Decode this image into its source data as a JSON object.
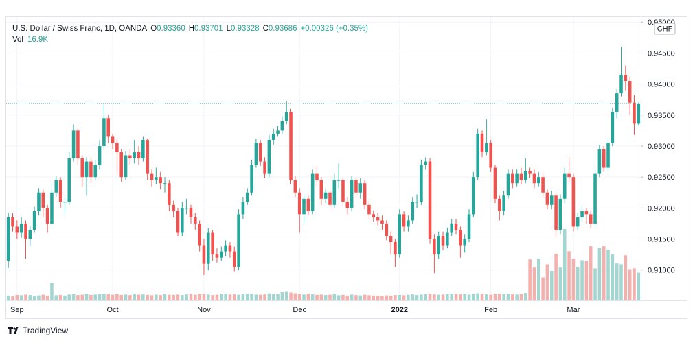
{
  "chart_data": {
    "type": "candlestick",
    "legend": {
      "symbol": "U.S. Dollar / Swiss Franc, 1D, OANDA",
      "fields": [
        {
          "label": "O",
          "value": "0.93360"
        },
        {
          "label": "H",
          "value": "0.93701"
        },
        {
          "label": "L",
          "value": "0.93328"
        },
        {
          "label": "C",
          "value": "0.93686"
        }
      ],
      "change": "+0.00326 (+0.35%)",
      "volume": {
        "label": "Vol",
        "value": "16.9K"
      }
    },
    "currency": "CHF",
    "brand": "TradingView",
    "up_color": "#26a69a",
    "down_color": "#ef5350",
    "volume_up_color": "#a3d6d1",
    "volume_down_color": "#f4b0ad",
    "categories": [
      null,
      null,
      "Sep",
      null,
      null,
      null,
      null,
      null,
      null,
      null,
      null,
      null,
      null,
      null,
      null,
      null,
      null,
      null,
      null,
      null,
      null,
      null,
      null,
      null,
      "Oct",
      null,
      null,
      null,
      null,
      null,
      null,
      null,
      null,
      null,
      null,
      null,
      null,
      null,
      null,
      null,
      null,
      null,
      null,
      null,
      null,
      "Nov",
      null,
      null,
      null,
      null,
      null,
      null,
      null,
      null,
      null,
      null,
      null,
      null,
      null,
      null,
      null,
      null,
      null,
      null,
      null,
      null,
      null,
      "Dec",
      null,
      null,
      null,
      null,
      null,
      null,
      null,
      null,
      null,
      null,
      null,
      null,
      null,
      null,
      null,
      null,
      null,
      null,
      null,
      null,
      null,
      null,
      "2022",
      null,
      null,
      null,
      null,
      null,
      null,
      null,
      null,
      null,
      null,
      null,
      null,
      null,
      null,
      null,
      null,
      null,
      null,
      null,
      null,
      "Feb",
      null,
      null,
      null,
      null,
      null,
      null,
      null,
      null,
      null,
      null,
      null,
      null,
      null,
      null,
      null,
      null,
      null,
      null,
      "Mar",
      null,
      null,
      null,
      null,
      null,
      null,
      null,
      null,
      null,
      null,
      null,
      null,
      null,
      null,
      null
    ],
    "open": [
      0.9115,
      0.9185,
      0.917,
      0.916,
      0.9175,
      0.915,
      0.9165,
      0.9195,
      0.9225,
      0.92,
      0.9175,
      0.9225,
      0.9245,
      0.921,
      0.921,
      0.928,
      0.9325,
      0.928,
      0.925,
      0.9275,
      0.925,
      0.927,
      0.93,
      0.9345,
      0.9315,
      0.9305,
      0.929,
      0.925,
      0.9285,
      0.928,
      0.929,
      0.928,
      0.931,
      0.9255,
      0.9245,
      0.925,
      0.924,
      0.924,
      0.9205,
      0.9195,
      0.916,
      0.92,
      0.92,
      0.9185,
      0.9175,
      0.914,
      0.911,
      0.916,
      0.9125,
      0.912,
      0.913,
      0.914,
      0.913,
      0.9105,
      0.919,
      0.921,
      0.9225,
      0.927,
      0.9305,
      0.9275,
      0.9255,
      0.931,
      0.932,
      0.9325,
      0.934,
      0.9355,
      0.9245,
      0.9225,
      0.919,
      0.9215,
      0.9195,
      0.9255,
      0.9245,
      0.9215,
      0.9225,
      0.9205,
      0.9245,
      0.9245,
      0.921,
      0.92,
      0.9245,
      0.9225,
      0.924,
      0.9205,
      0.919,
      0.9185,
      0.918,
      0.9175,
      0.9155,
      0.9145,
      0.9125,
      0.919,
      0.917,
      0.918,
      0.921,
      0.921,
      0.927,
      0.9275,
      0.915,
      0.9125,
      0.9155,
      0.914,
      0.916,
      0.9175,
      0.9165,
      0.914,
      0.915,
      0.919,
      0.925,
      0.932,
      0.929,
      0.9305,
      0.9265,
      0.9215,
      0.9195,
      0.922,
      0.9255,
      0.924,
      0.9255,
      0.9245,
      0.926,
      0.9255,
      0.924,
      0.925,
      0.9225,
      0.9205,
      0.922,
      0.9165,
      0.9215,
      0.9255,
      0.925,
      0.917,
      0.9185,
      0.9195,
      0.919,
      0.9175,
      0.9255,
      0.9295,
      0.9265,
      0.9305,
      0.9355,
      0.9385,
      0.9415,
      0.9405,
      0.937,
      0.9336
    ],
    "high": [
      0.9192,
      0.9192,
      0.918,
      0.9185,
      0.918,
      0.9172,
      0.9202,
      0.9232,
      0.923,
      0.9205,
      0.9238,
      0.9252,
      0.925,
      0.9218,
      0.929,
      0.9335,
      0.933,
      0.9285,
      0.9282,
      0.928,
      0.9278,
      0.931,
      0.9368,
      0.935,
      0.932,
      0.9312,
      0.9295,
      0.9292,
      0.9295,
      0.931,
      0.93,
      0.9315,
      0.9312,
      0.9262,
      0.9265,
      0.9258,
      0.925,
      0.9245,
      0.9212,
      0.92,
      0.921,
      0.9215,
      0.9205,
      0.9192,
      0.918,
      0.915,
      0.9168,
      0.9165,
      0.9135,
      0.9138,
      0.9148,
      0.9145,
      0.9138,
      0.9198,
      0.9218,
      0.9232,
      0.9278,
      0.9312,
      0.931,
      0.9282,
      0.9318,
      0.9328,
      0.9332,
      0.9348,
      0.9372,
      0.936,
      0.9252,
      0.9232,
      0.9222,
      0.922,
      0.9262,
      0.9268,
      0.925,
      0.9232,
      0.923,
      0.9255,
      0.9272,
      0.925,
      0.9218,
      0.9252,
      0.925,
      0.9248,
      0.9245,
      0.9212,
      0.9196,
      0.9192,
      0.9188,
      0.918,
      0.9162,
      0.915,
      0.9198,
      0.9195,
      0.9188,
      0.9218,
      0.9222,
      0.9278,
      0.9282,
      0.928,
      0.9158,
      0.9162,
      0.9162,
      0.9168,
      0.9182,
      0.9182,
      0.917,
      0.9158,
      0.9198,
      0.9258,
      0.9328,
      0.9325,
      0.9343,
      0.931,
      0.927,
      0.922,
      0.9228,
      0.9262,
      0.9262,
      0.9262,
      0.9265,
      0.928,
      0.9265,
      0.9262,
      0.9258,
      0.9255,
      0.923,
      0.9228,
      0.9225,
      0.9222,
      0.9265,
      0.928,
      0.9255,
      0.9192,
      0.9202,
      0.92,
      0.9195,
      0.9262,
      0.9302,
      0.93,
      0.9312,
      0.9362,
      0.9392,
      0.946,
      0.943,
      0.9412,
      0.9382,
      0.93701
    ],
    "low": [
      0.9103,
      0.9162,
      0.915,
      0.9152,
      0.9118,
      0.9138,
      0.916,
      0.9188,
      0.9185,
      0.916,
      0.917,
      0.9218,
      0.92,
      0.919,
      0.9205,
      0.9275,
      0.927,
      0.9235,
      0.922,
      0.924,
      0.9245,
      0.9262,
      0.9295,
      0.9305,
      0.9295,
      0.9255,
      0.9242,
      0.9245,
      0.927,
      0.9272,
      0.927,
      0.9275,
      0.9245,
      0.9235,
      0.9238,
      0.923,
      0.9225,
      0.9195,
      0.9185,
      0.9155,
      0.9155,
      0.919,
      0.9175,
      0.9165,
      0.913,
      0.9092,
      0.91,
      0.9115,
      0.9112,
      0.9115,
      0.9122,
      0.912,
      0.9098,
      0.91,
      0.9182,
      0.9205,
      0.922,
      0.9265,
      0.9268,
      0.9248,
      0.925,
      0.9302,
      0.9315,
      0.932,
      0.9335,
      0.9238,
      0.9218,
      0.916,
      0.9175,
      0.9188,
      0.919,
      0.9235,
      0.9205,
      0.9208,
      0.9198,
      0.92,
      0.9232,
      0.9202,
      0.919,
      0.9195,
      0.9218,
      0.9215,
      0.9198,
      0.9182,
      0.9178,
      0.9172,
      0.9165,
      0.9148,
      0.9125,
      0.9105,
      0.912,
      0.9162,
      0.9162,
      0.9175,
      0.92,
      0.9205,
      0.9262,
      0.9142,
      0.9095,
      0.9118,
      0.9132,
      0.9135,
      0.9155,
      0.9158,
      0.912,
      0.9128,
      0.9145,
      0.9185,
      0.9245,
      0.9282,
      0.9285,
      0.9258,
      0.9208,
      0.918,
      0.9188,
      0.9215,
      0.9232,
      0.9235,
      0.9238,
      0.924,
      0.9248,
      0.9232,
      0.9235,
      0.9218,
      0.9198,
      0.9198,
      0.9155,
      0.9158,
      0.9208,
      0.9242,
      0.9162,
      0.9165,
      0.9178,
      0.9175,
      0.9168,
      0.917,
      0.925,
      0.9258,
      0.926,
      0.93,
      0.9345,
      0.938,
      0.939,
      0.935,
      0.9318,
      0.93328
    ],
    "close": [
      0.9185,
      0.917,
      0.916,
      0.9175,
      0.915,
      0.9165,
      0.9195,
      0.9225,
      0.92,
      0.9175,
      0.9225,
      0.9245,
      0.921,
      0.921,
      0.928,
      0.9325,
      0.928,
      0.925,
      0.9275,
      0.925,
      0.927,
      0.93,
      0.9345,
      0.9315,
      0.9305,
      0.929,
      0.925,
      0.9285,
      0.928,
      0.929,
      0.928,
      0.931,
      0.9255,
      0.9245,
      0.925,
      0.924,
      0.924,
      0.9205,
      0.9195,
      0.916,
      0.92,
      0.92,
      0.9185,
      0.9175,
      0.914,
      0.911,
      0.916,
      0.9125,
      0.912,
      0.913,
      0.914,
      0.913,
      0.9105,
      0.919,
      0.921,
      0.9225,
      0.927,
      0.9305,
      0.9275,
      0.9255,
      0.931,
      0.932,
      0.9325,
      0.934,
      0.9355,
      0.9245,
      0.9225,
      0.919,
      0.9215,
      0.9195,
      0.9255,
      0.9245,
      0.9215,
      0.9225,
      0.9205,
      0.9245,
      0.9245,
      0.921,
      0.92,
      0.9245,
      0.9225,
      0.924,
      0.9205,
      0.919,
      0.9185,
      0.918,
      0.9175,
      0.9155,
      0.9145,
      0.9125,
      0.919,
      0.917,
      0.918,
      0.921,
      0.921,
      0.927,
      0.9275,
      0.915,
      0.9125,
      0.9155,
      0.914,
      0.916,
      0.9175,
      0.9165,
      0.914,
      0.915,
      0.919,
      0.925,
      0.932,
      0.929,
      0.9305,
      0.9265,
      0.9215,
      0.9195,
      0.922,
      0.9255,
      0.924,
      0.9255,
      0.9245,
      0.926,
      0.9255,
      0.924,
      0.925,
      0.9225,
      0.9205,
      0.922,
      0.9165,
      0.9215,
      0.9255,
      0.925,
      0.917,
      0.9185,
      0.9195,
      0.919,
      0.9175,
      0.9255,
      0.9295,
      0.9265,
      0.9305,
      0.9355,
      0.9385,
      0.9415,
      0.9405,
      0.937,
      0.9336,
      0.93686
    ],
    "volume": [
      3000,
      2800,
      3400,
      3200,
      3600,
      3300,
      2900,
      3100,
      3500,
      3000,
      10500,
      3200,
      3400,
      3000,
      3600,
      3800,
      3300,
      3500,
      4200,
      3400,
      3600,
      3900,
      4100,
      3700,
      3500,
      3800,
      3400,
      3600,
      3300,
      3900,
      3500,
      3700,
      3400,
      3200,
      3600,
      3300,
      3800,
      3500,
      3400,
      3600,
      3300,
      3700,
      3900,
      3500,
      4100,
      3800,
      3600,
      3300,
      3500,
      3800,
      4000,
      3600,
      3700,
      3500,
      3900,
      4200,
      3800,
      3600,
      3500,
      3700,
      4300,
      3900,
      4100,
      5000,
      5200,
      4800,
      4400,
      3800,
      3600,
      3900,
      3700,
      3400,
      3600,
      3300,
      3500,
      3800,
      3200,
      3400,
      3000,
      3600,
      3300,
      3100,
      3500,
      3200,
      3000,
      2800,
      2700,
      3100,
      2900,
      3300,
      3400,
      3200,
      3500,
      3700,
      3300,
      3600,
      3800,
      4000,
      3700,
      3500,
      3600,
      3900,
      4100,
      3800,
      3700,
      4000,
      3600,
      3800,
      4400,
      4100,
      3700,
      3500,
      3900,
      4200,
      3800,
      4000,
      3700,
      3600,
      3900,
      4600,
      25000,
      20000,
      25500,
      14000,
      22000,
      18000,
      28500,
      20000,
      43500,
      30000,
      25500,
      20500,
      24500,
      24000,
      33000,
      19500,
      32000,
      33000,
      31000,
      28000,
      22500,
      22000,
      27500,
      19000,
      19500,
      16900
    ],
    "ylim": [
      0.9051,
      0.9508
    ],
    "yticks": [
      {
        "value": 0.91,
        "label": "0.91000"
      },
      {
        "value": 0.915,
        "label": "0.91500"
      },
      {
        "value": 0.92,
        "label": "0.92000"
      },
      {
        "value": 0.925,
        "label": "0.92500"
      },
      {
        "value": 0.93,
        "label": "0.93000"
      },
      {
        "value": 0.935,
        "label": "0.93500"
      },
      {
        "value": 0.94,
        "label": "0.94000"
      },
      {
        "value": 0.945,
        "label": "0.94500"
      },
      {
        "value": 0.95,
        "label": "0.95000"
      }
    ],
    "grid": true
  }
}
